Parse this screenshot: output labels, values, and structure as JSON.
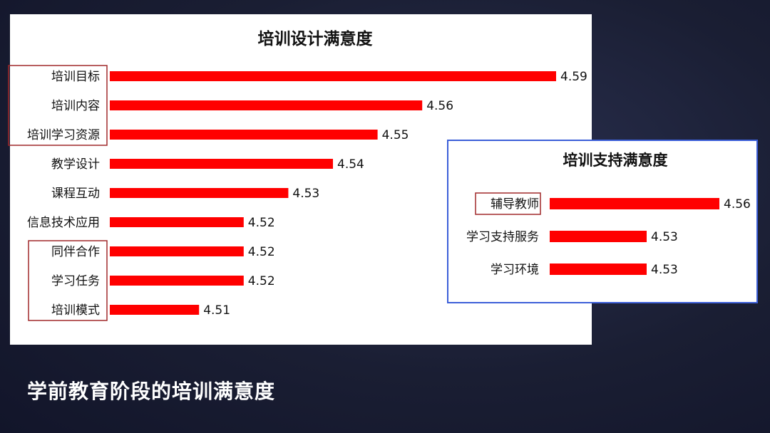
{
  "footer": {
    "title": "学前教育阶段的培训满意度"
  },
  "chart_data": [
    {
      "type": "bar",
      "orientation": "horizontal",
      "title": "培训设计满意度",
      "categories": [
        "培训目标",
        "培训内容",
        "培训学习资源",
        "教学设计",
        "课程互动",
        "信息技术应用",
        "同伴合作",
        "学习任务",
        "培训模式"
      ],
      "values": [
        4.59,
        4.56,
        4.55,
        4.54,
        4.53,
        4.52,
        4.52,
        4.52,
        4.51
      ],
      "value_labels": [
        "4.59",
        "4.56",
        "4.55",
        "4.54",
        "4.53",
        "4.52",
        "4.52",
        "4.52",
        "4.51"
      ],
      "highlight_groups": [
        [
          0,
          1,
          2
        ],
        [
          6,
          7,
          8
        ]
      ],
      "bar_color": "#ff0000",
      "highlight_color": "#a0282a"
    },
    {
      "type": "bar",
      "orientation": "horizontal",
      "title": "培训支持满意度",
      "categories": [
        "辅导教师",
        "学习支持服务",
        "学习环境"
      ],
      "values": [
        4.56,
        4.53,
        4.53
      ],
      "value_labels": [
        "4.56",
        "4.53",
        "4.53"
      ],
      "highlight_groups": [
        [
          0
        ]
      ],
      "bar_color": "#ff0000",
      "highlight_color": "#a0282a"
    }
  ]
}
